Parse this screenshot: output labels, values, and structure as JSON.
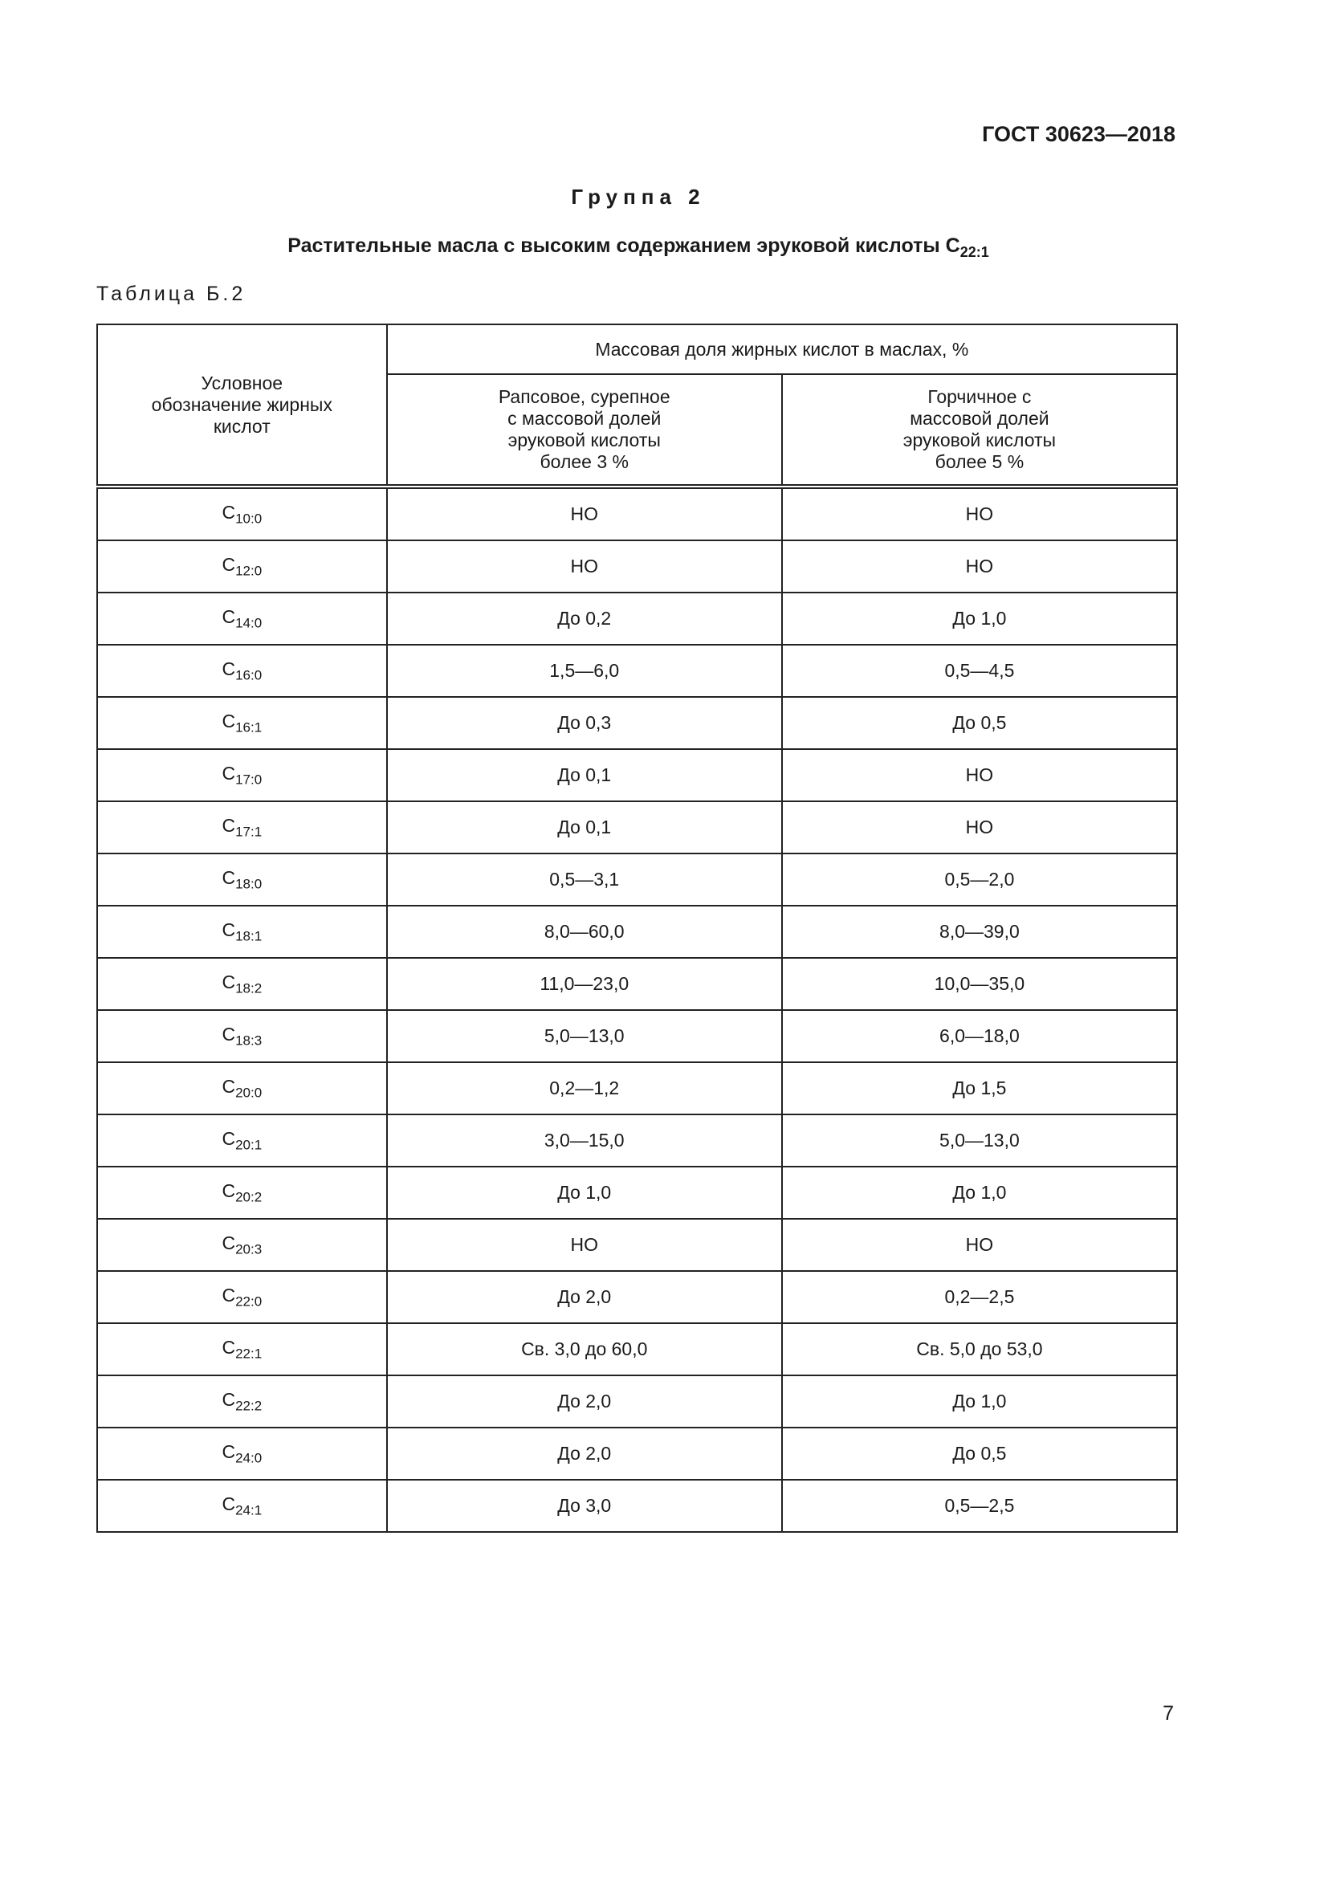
{
  "header": {
    "doc_code": "ГОСТ 30623—2018"
  },
  "group_title": "Группа 2",
  "subtitle": {
    "text": "Растительные масла с высоким содержанием эруковой кислоты C",
    "subscript": "22:1"
  },
  "table_label": "Таблица Б.2",
  "table": {
    "col0_header": "Условное обозначение жирных кислот",
    "group_header": "Массовая доля жирных кислот в маслах, %",
    "col1_header": "Рапсовое, сурепное с массовой долей эруковой кислоты более 3 %",
    "col2_header": "Горчичное с массовой долей эруковой кислоты более 5 %",
    "rows": [
      {
        "acid": "C",
        "sub": "10:0",
        "rapeseed": "НО",
        "mustard": "НО"
      },
      {
        "acid": "C",
        "sub": "12:0",
        "rapeseed": "НО",
        "mustard": "НО"
      },
      {
        "acid": "C",
        "sub": "14:0",
        "rapeseed": "До 0,2",
        "mustard": "До 1,0"
      },
      {
        "acid": "C",
        "sub": "16:0",
        "rapeseed": "1,5—6,0",
        "mustard": "0,5—4,5"
      },
      {
        "acid": "C",
        "sub": "16:1",
        "rapeseed": "До 0,3",
        "mustard": "До 0,5"
      },
      {
        "acid": "C",
        "sub": "17:0",
        "rapeseed": "До 0,1",
        "mustard": "НО"
      },
      {
        "acid": "C",
        "sub": "17:1",
        "rapeseed": "До 0,1",
        "mustard": "НО"
      },
      {
        "acid": "C",
        "sub": "18:0",
        "rapeseed": "0,5—3,1",
        "mustard": "0,5—2,0"
      },
      {
        "acid": "C",
        "sub": "18:1",
        "rapeseed": "8,0—60,0",
        "mustard": "8,0—39,0"
      },
      {
        "acid": "C",
        "sub": "18:2",
        "rapeseed": "11,0—23,0",
        "mustard": "10,0—35,0"
      },
      {
        "acid": "C",
        "sub": "18:3",
        "rapeseed": "5,0—13,0",
        "mustard": "6,0—18,0"
      },
      {
        "acid": "C",
        "sub": "20:0",
        "rapeseed": "0,2—1,2",
        "mustard": "До 1,5"
      },
      {
        "acid": "C",
        "sub": "20:1",
        "rapeseed": "3,0—15,0",
        "mustard": "5,0—13,0"
      },
      {
        "acid": "C",
        "sub": "20:2",
        "rapeseed": "До 1,0",
        "mustard": "До 1,0"
      },
      {
        "acid": "C",
        "sub": "20:3",
        "rapeseed": "НО",
        "mustard": "НО"
      },
      {
        "acid": "C",
        "sub": "22:0",
        "rapeseed": "До 2,0",
        "mustard": "0,2—2,5"
      },
      {
        "acid": "C",
        "sub": "22:1",
        "rapeseed": "Св. 3,0 до 60,0",
        "mustard": "Св. 5,0 до 53,0"
      },
      {
        "acid": "C",
        "sub": "22:2",
        "rapeseed": "До 2,0",
        "mustard": "До 1,0"
      },
      {
        "acid": "C",
        "sub": "24:0",
        "rapeseed": "До 2,0",
        "mustard": "До 0,5"
      },
      {
        "acid": "C",
        "sub": "24:1",
        "rapeseed": "До 3,0",
        "mustard": "0,5—2,5"
      }
    ]
  },
  "page_number": "7"
}
